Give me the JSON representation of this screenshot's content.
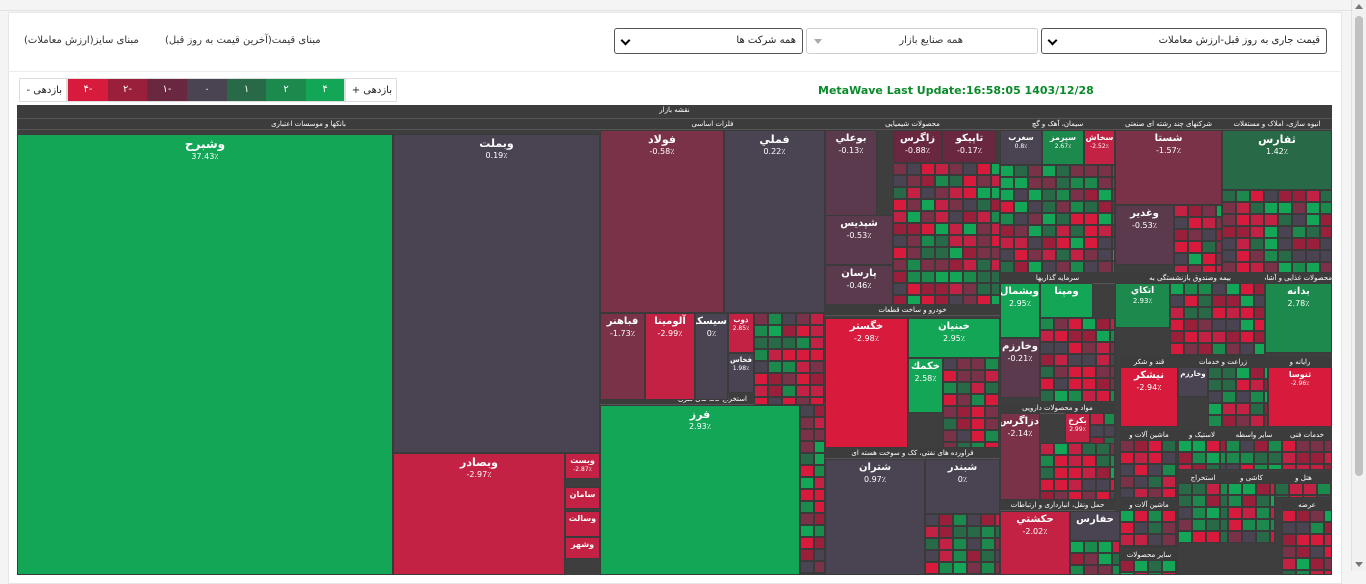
{
  "controls": {
    "size_basis_label": "مبنای سایز(ارزش معاملات)",
    "price_basis_label": "مبنای قیمت(آخرین قیمت به روز قبل)",
    "companies_select": "همه شرکت ها",
    "industries_select": "همه صنایع بازار",
    "metric_select": "قیمت جاری به روز قبل-ارزش معاملات"
  },
  "legend": {
    "neg_label": "بازدهی -",
    "pos_label": "بازدهی +",
    "steps": [
      {
        "label": "۴-",
        "color": "#d81b3c"
      },
      {
        "label": "۲-",
        "color": "#9a1f3a"
      },
      {
        "label": "۱-",
        "color": "#6a2840"
      },
      {
        "label": "۰",
        "color": "#4a4452"
      },
      {
        "label": "۱",
        "color": "#286a48"
      },
      {
        "label": "۲",
        "color": "#1b8a4c"
      },
      {
        "label": "۴",
        "color": "#12a656"
      }
    ]
  },
  "update": {
    "text": "MetaWave Last Update:16:58:05 1403/12/28"
  },
  "map": {
    "title": "نقشه بازار",
    "sectors": [
      {
        "name": "بانکها و موسسات اعتباری"
      },
      {
        "name": "فلزات اساسی"
      },
      {
        "name": "استخراج کانه های فلزی"
      },
      {
        "name": "محصولات شیمیایی"
      },
      {
        "name": "خودرو و ساخت قطعات"
      },
      {
        "name": "فراورده های نفتی، کک و سوخت هسته ای"
      },
      {
        "name": "سیمان، آهک و گچ"
      },
      {
        "name": "شرکتهای چند رشته ای صنعتی"
      },
      {
        "name": "انبوه سازی، املاک و مستغلات"
      },
      {
        "name": "سرمایه گذاریها"
      },
      {
        "name": "بیمه وصندوق بازنشستگی به"
      },
      {
        "name": "محصولات غذایی و آشامیدنی"
      },
      {
        "name": "مواد و محصولات دارویی"
      },
      {
        "name": "حمل ونقل، انبارداری و ارتباطات"
      },
      {
        "name": "قند و شکر"
      },
      {
        "name": "زراعت و خدمات"
      },
      {
        "name": "رایانه و"
      },
      {
        "name": "ماشین آلات و"
      },
      {
        "name": "لاستیک و"
      },
      {
        "name": "سایر واسطه"
      },
      {
        "name": "خدمات فنی"
      },
      {
        "name": "استخراج"
      },
      {
        "name": "هتل و"
      },
      {
        "name": "عرضه"
      },
      {
        "name": "کاشی و"
      },
      {
        "name": "ماشین آلات و"
      },
      {
        "name": "سایر محصولات"
      }
    ],
    "tiles": [
      {
        "name": "وشبرح",
        "change": "37.43٪",
        "color": "#12a656"
      },
      {
        "name": "وبملت",
        "change": "0.19٪",
        "color": "#4a4452"
      },
      {
        "name": "وبصادر",
        "change": "-2.97٪",
        "color": "#c42244"
      },
      {
        "name": "وبست",
        "change": "-2.87٪",
        "color": "#c42244"
      },
      {
        "name": "سامان",
        "change": "",
        "color": "#c42244"
      },
      {
        "name": "وسالت",
        "change": "",
        "color": "#c42244"
      },
      {
        "name": "وشهر",
        "change": "",
        "color": "#c42244"
      },
      {
        "name": "فولاد",
        "change": "-0.58٪",
        "color": "#7a3248"
      },
      {
        "name": "فملي",
        "change": "0.22٪",
        "color": "#4a4452"
      },
      {
        "name": "فباهنر",
        "change": "-1.73٪",
        "color": "#7a3248"
      },
      {
        "name": "آلومينا",
        "change": "-2.99٪",
        "color": "#c42244"
      },
      {
        "name": "سيسكو",
        "change": "0٪",
        "color": "#4a4452"
      },
      {
        "name": "ذوب",
        "change": "2.85٪",
        "color": "#c42244"
      },
      {
        "name": "فخاس",
        "change": "1.98٪",
        "color": "#4a4452"
      },
      {
        "name": "فرز",
        "change": "2.93٪",
        "color": "#12a656"
      },
      {
        "name": "بوعلي",
        "change": "-0.13٪",
        "color": "#5a3a4c"
      },
      {
        "name": "زاگرس",
        "change": "-0.88٪",
        "color": "#6a2840"
      },
      {
        "name": "تاپيكو",
        "change": "-0.17٪",
        "color": "#6a2840"
      },
      {
        "name": "شپديس",
        "change": "-0.53٪",
        "color": "#5a3a4c"
      },
      {
        "name": "پارسان",
        "change": "-0.46٪",
        "color": "#5a3a4c"
      },
      {
        "name": "خگستر",
        "change": "-2.98٪",
        "color": "#d81b3c"
      },
      {
        "name": "خبنيان",
        "change": "2.95٪",
        "color": "#12a656"
      },
      {
        "name": "خكمك",
        "change": "2.58٪",
        "color": "#12a656"
      },
      {
        "name": "شتران",
        "change": "0.97٪",
        "color": "#4a4452"
      },
      {
        "name": "شبندر",
        "change": "0٪",
        "color": "#4a4452"
      },
      {
        "name": "سخاش",
        "change": "-2.52٪",
        "color": "#c42244"
      },
      {
        "name": "سپرمز",
        "change": "2.67٪",
        "color": "#1b8a4c"
      },
      {
        "name": "سغرب",
        "change": "0.8٪",
        "color": "#4a4452"
      },
      {
        "name": "شستا",
        "change": "-1.57٪",
        "color": "#7a3248"
      },
      {
        "name": "وغدير",
        "change": "-0.53٪",
        "color": "#5a3a4c"
      },
      {
        "name": "ثفارس",
        "change": "1.42٪",
        "color": "#286a48"
      },
      {
        "name": "وبشمال",
        "change": "2.95٪",
        "color": "#12a656"
      },
      {
        "name": "ومپنا",
        "change": "",
        "color": "#12a656"
      },
      {
        "name": "وخارزم",
        "change": "-0.21٪",
        "color": "#5a3a4c"
      },
      {
        "name": "حكشتي",
        "change": "-2.02٪",
        "color": "#c42244"
      },
      {
        "name": "حفارس",
        "change": "",
        "color": "#4a4452"
      },
      {
        "name": "دزاگرس",
        "change": "-2.14٪",
        "color": "#7a3248"
      },
      {
        "name": "بكرخ",
        "change": "2.99٪",
        "color": "#c42244"
      },
      {
        "name": "اتكاي",
        "change": "2.93٪",
        "color": "#1b8a4c"
      },
      {
        "name": "بدانه",
        "change": "2.78٪",
        "color": "#1b8a4c"
      },
      {
        "name": "نيشكر",
        "change": "-2.94٪",
        "color": "#d81b3c"
      },
      {
        "name": "وخارزم",
        "change": "",
        "color": "#4a4452"
      },
      {
        "name": "ثنوسا",
        "change": "-2.96٪",
        "color": "#d81b3c"
      }
    ]
  }
}
